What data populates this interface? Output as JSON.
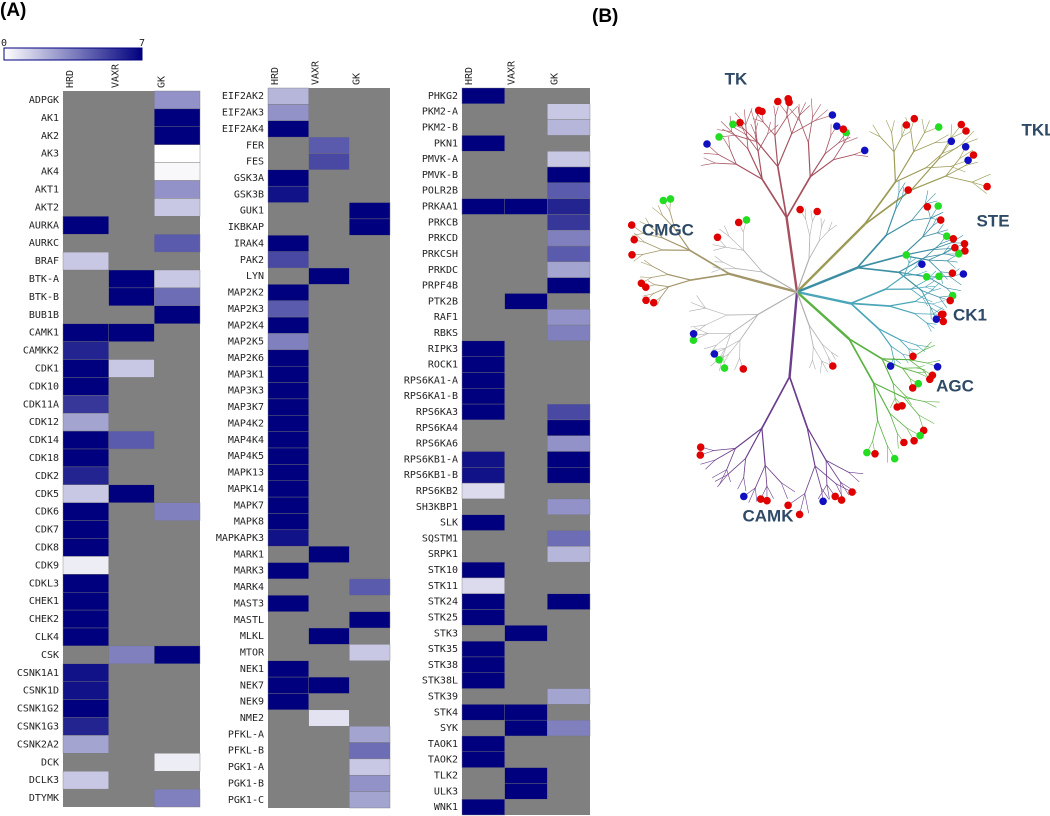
{
  "panel_labels": [
    "(A)",
    "(B)"
  ],
  "colorbar": {
    "zlim": [
      0,
      7
    ],
    "zticks": [
      0,
      7
    ],
    "colors": [
      "#ffffff",
      "#00007f"
    ],
    "missing_color": "#808080"
  },
  "chart_data": [
    {
      "type": "heatmap",
      "x": [
        "HRD",
        "VAXR",
        "GK"
      ],
      "categories": [
        "ADPGK",
        "AK1",
        "AK2",
        "AK3",
        "AK4",
        "AKT1",
        "AKT2",
        "AURKA",
        "AURKC",
        "BRAF",
        "BTK-A",
        "BTK-B",
        "BUB1B",
        "CAMK1",
        "CAMKK2",
        "CDK1",
        "CDK10",
        "CDK11A",
        "CDK12",
        "CDK14",
        "CDK18",
        "CDK2",
        "CDK5",
        "CDK6",
        "CDK7",
        "CDK8",
        "CDK9",
        "CDKL3",
        "CHEK1",
        "CHEK2",
        "CLK4",
        "CSK",
        "CSNK1A1",
        "CSNK1D",
        "CSNK1G2",
        "CSNK1G3",
        "CSNK2A2",
        "DCK",
        "DCLK3",
        "DTYMK"
      ],
      "values": [
        [
          null,
          null,
          3
        ],
        [
          null,
          null,
          7
        ],
        [
          null,
          null,
          7
        ],
        [
          null,
          null,
          0
        ],
        [
          null,
          null,
          0.2
        ],
        [
          null,
          null,
          3
        ],
        [
          null,
          null,
          1.5
        ],
        [
          7,
          null,
          null
        ],
        [
          null,
          null,
          4.5
        ],
        [
          1.5,
          null,
          null
        ],
        [
          null,
          7,
          1.5
        ],
        [
          null,
          7,
          4
        ],
        [
          null,
          null,
          7
        ],
        [
          7,
          7,
          null
        ],
        [
          6,
          null,
          null
        ],
        [
          7,
          1.5,
          null
        ],
        [
          7,
          null,
          null
        ],
        [
          5.5,
          null,
          null
        ],
        [
          2.5,
          null,
          null
        ],
        [
          7,
          4.5,
          null
        ],
        [
          7,
          null,
          null
        ],
        [
          6,
          null,
          null
        ],
        [
          1.5,
          7,
          null
        ],
        [
          7,
          null,
          3.5
        ],
        [
          7,
          null,
          null
        ],
        [
          7,
          null,
          null
        ],
        [
          0.5,
          null,
          null
        ],
        [
          7,
          null,
          null
        ],
        [
          7,
          null,
          null
        ],
        [
          7,
          null,
          null
        ],
        [
          7,
          null,
          null
        ],
        [
          null,
          3.5,
          7
        ],
        [
          6.5,
          null,
          null
        ],
        [
          6.5,
          null,
          null
        ],
        [
          7,
          null,
          null
        ],
        [
          6,
          null,
          null
        ],
        [
          2.5,
          null,
          null
        ],
        [
          null,
          null,
          0.5
        ],
        [
          1.5,
          null,
          null
        ],
        [
          null,
          null,
          3.5
        ]
      ]
    },
    {
      "type": "heatmap",
      "x": [
        "HRD",
        "VAXR",
        "GK"
      ],
      "categories": [
        "EIF2AK2",
        "EIF2AK3",
        "EIF2AK4",
        "FER",
        "FES",
        "GSK3A",
        "GSK3B",
        "GUK1",
        "IKBKAP",
        "IRAK4",
        "PAK2",
        "LYN",
        "MAP2K2",
        "MAP2K3",
        "MAP2K4",
        "MAP2K5",
        "MAP2K6",
        "MAP3K1",
        "MAP3K3",
        "MAP3K7",
        "MAP4K2",
        "MAP4K4",
        "MAP4K5",
        "MAPK13",
        "MAPK14",
        "MAPK7",
        "MAPK8",
        "MAPKAPK3",
        "MARK1",
        "MARK3",
        "MARK4",
        "MAST3",
        "MASTL",
        "MLKL",
        "MTOR",
        "NEK1",
        "NEK7",
        "NEK9",
        "NME2",
        "PFKL-A",
        "PFKL-B",
        "PGK1-A",
        "PGK1-B",
        "PGK1-C"
      ],
      "values": [
        [
          2,
          null,
          null
        ],
        [
          3,
          null,
          null
        ],
        [
          7,
          null,
          null
        ],
        [
          null,
          4.5,
          null
        ],
        [
          null,
          5,
          null
        ],
        [
          7,
          null,
          null
        ],
        [
          6.5,
          null,
          null
        ],
        [
          null,
          null,
          7
        ],
        [
          null,
          null,
          7
        ],
        [
          7,
          null,
          null
        ],
        [
          5,
          null,
          null
        ],
        [
          null,
          7,
          null
        ],
        [
          7,
          null,
          null
        ],
        [
          4.5,
          null,
          null
        ],
        [
          7,
          null,
          null
        ],
        [
          3.5,
          null,
          null
        ],
        [
          7,
          null,
          null
        ],
        [
          7,
          null,
          null
        ],
        [
          7,
          null,
          null
        ],
        [
          7,
          null,
          null
        ],
        [
          7,
          null,
          null
        ],
        [
          7,
          null,
          null
        ],
        [
          7,
          null,
          null
        ],
        [
          7,
          null,
          null
        ],
        [
          7,
          null,
          null
        ],
        [
          7,
          null,
          null
        ],
        [
          7,
          null,
          null
        ],
        [
          6.5,
          null,
          null
        ],
        [
          null,
          7,
          null
        ],
        [
          7,
          null,
          null
        ],
        [
          null,
          null,
          4.5
        ],
        [
          7,
          null,
          null
        ],
        [
          null,
          null,
          7
        ],
        [
          null,
          7,
          null
        ],
        [
          null,
          null,
          1.5
        ],
        [
          7,
          null,
          null
        ],
        [
          7,
          7,
          null
        ],
        [
          7,
          null,
          null
        ],
        [
          null,
          0.8,
          null
        ],
        [
          null,
          null,
          2.5
        ],
        [
          null,
          null,
          4
        ],
        [
          null,
          null,
          1.5
        ],
        [
          null,
          null,
          3
        ],
        [
          null,
          null,
          2.5
        ]
      ]
    },
    {
      "type": "heatmap",
      "x": [
        "HRD",
        "VAXR",
        "GK"
      ],
      "categories": [
        "PHKG2",
        "PKM2-A",
        "PKM2-B",
        "PKN1",
        "PMVK-A",
        "PMVK-B",
        "POLR2B",
        "PRKAA1",
        "PRKCB",
        "PRKCD",
        "PRKCSH",
        "PRKDC",
        "PRPF4B",
        "PTK2B",
        "RAF1",
        "RBKS",
        "RIPK3",
        "ROCK1",
        "RPS6KA1-A",
        "RPS6KA1-B",
        "RPS6KA3",
        "RPS6KA4",
        "RPS6KA6",
        "RPS6KB1-A",
        "RPS6KB1-B",
        "RPS6KB2",
        "SH3KBP1",
        "SLK",
        "SQSTM1",
        "SRPK1",
        "STK10",
        "STK11",
        "STK24",
        "STK25",
        "STK3",
        "STK35",
        "STK38",
        "STK38L",
        "STK39",
        "STK4",
        "SYK",
        "TAOK1",
        "TAOK2",
        "TLK2",
        "ULK3",
        "WNK1"
      ],
      "values": [
        [
          7,
          null,
          null
        ],
        [
          null,
          null,
          1.5
        ],
        [
          null,
          null,
          2
        ],
        [
          7,
          null,
          null
        ],
        [
          null,
          null,
          1.5
        ],
        [
          null,
          null,
          7
        ],
        [
          null,
          null,
          4.5
        ],
        [
          7,
          7,
          6
        ],
        [
          null,
          null,
          5.5
        ],
        [
          null,
          null,
          3.5
        ],
        [
          null,
          null,
          4.5
        ],
        [
          null,
          null,
          2.5
        ],
        [
          null,
          null,
          7
        ],
        [
          null,
          7,
          null
        ],
        [
          null,
          null,
          3
        ],
        [
          null,
          null,
          3.5
        ],
        [
          7,
          null,
          null
        ],
        [
          7,
          null,
          null
        ],
        [
          7,
          null,
          null
        ],
        [
          7,
          null,
          null
        ],
        [
          7,
          null,
          5
        ],
        [
          null,
          null,
          7
        ],
        [
          null,
          null,
          3
        ],
        [
          6.5,
          null,
          7
        ],
        [
          6.5,
          null,
          7
        ],
        [
          1,
          null,
          null
        ],
        [
          null,
          null,
          3
        ],
        [
          7,
          null,
          null
        ],
        [
          null,
          null,
          4
        ],
        [
          null,
          null,
          2
        ],
        [
          7,
          null,
          null
        ],
        [
          1,
          null,
          null
        ],
        [
          7,
          null,
          7
        ],
        [
          7,
          null,
          null
        ],
        [
          null,
          7,
          null
        ],
        [
          7,
          null,
          null
        ],
        [
          7,
          null,
          null
        ],
        [
          7,
          null,
          null
        ],
        [
          null,
          null,
          2.5
        ],
        [
          7,
          7,
          null
        ],
        [
          null,
          7,
          3.5
        ],
        [
          7,
          null,
          null
        ],
        [
          7,
          null,
          null
        ],
        [
          null,
          7,
          null
        ],
        [
          null,
          7,
          null
        ],
        [
          7,
          null,
          null
        ]
      ]
    }
  ],
  "tree": {
    "groups": [
      "TK",
      "TKL",
      "STE",
      "CK1",
      "AGC",
      "CAMK",
      "CMGC"
    ]
  }
}
